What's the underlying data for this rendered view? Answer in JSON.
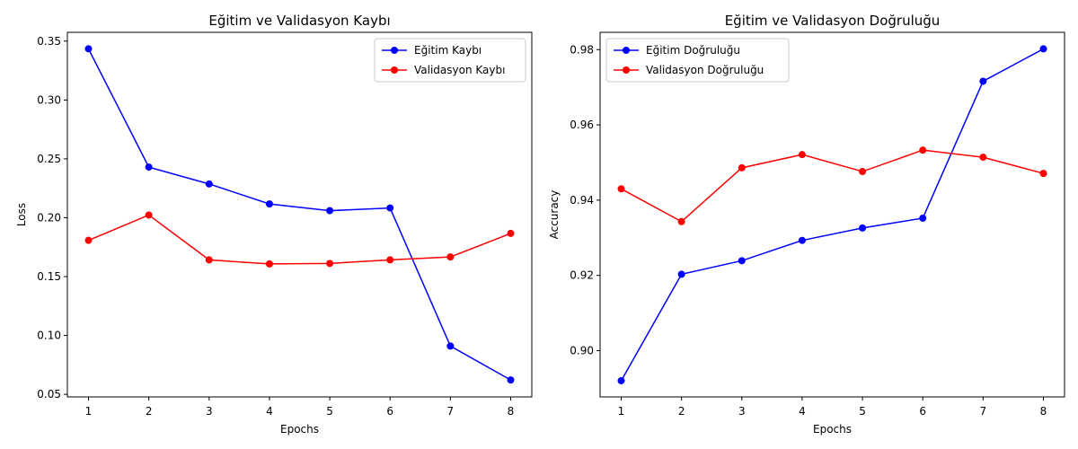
{
  "chart_data": [
    {
      "type": "line",
      "title": "Eğitim ve Validasyon Kaybı",
      "xlabel": "Epochs",
      "ylabel": "Loss",
      "x": [
        1,
        2,
        3,
        4,
        5,
        6,
        7,
        8
      ],
      "xticks": [
        1,
        2,
        3,
        4,
        5,
        6,
        7,
        8
      ],
      "yticks": [
        0.05,
        0.1,
        0.15,
        0.2,
        0.25,
        0.3,
        0.35
      ],
      "ytick_labels": [
        "0.05",
        "0.10",
        "0.15",
        "0.20",
        "0.25",
        "0.30",
        "0.35"
      ],
      "xlim": [
        0.65,
        8.35
      ],
      "ylim": [
        0.0478,
        0.3575
      ],
      "legend_position": "upper-right",
      "grid": false,
      "series": [
        {
          "name": "Eğitim Kaybı",
          "color": "#0000ff",
          "marker": "circle",
          "values": [
            0.3435,
            0.243,
            0.2287,
            0.2117,
            0.206,
            0.2083,
            0.091,
            0.0622
          ]
        },
        {
          "name": "Validasyon Kaybı",
          "color": "#ff0000",
          "marker": "circle",
          "values": [
            0.1808,
            0.2023,
            0.1642,
            0.1608,
            0.1612,
            0.1642,
            0.1667,
            0.1867
          ]
        }
      ]
    },
    {
      "type": "line",
      "title": "Eğitim ve Validasyon Doğruluğu",
      "xlabel": "Epochs",
      "ylabel": "Accuracy",
      "x": [
        1,
        2,
        3,
        4,
        5,
        6,
        7,
        8
      ],
      "xticks": [
        1,
        2,
        3,
        4,
        5,
        6,
        7,
        8
      ],
      "yticks": [
        0.9,
        0.92,
        0.94,
        0.96,
        0.98
      ],
      "ytick_labels": [
        "0.90",
        "0.92",
        "0.94",
        "0.96",
        "0.98"
      ],
      "xlim": [
        0.65,
        8.35
      ],
      "ylim": [
        0.8877,
        0.9846
      ],
      "legend_position": "upper-left",
      "grid": false,
      "series": [
        {
          "name": "Eğitim Doğruluğu",
          "color": "#0000ff",
          "marker": "circle",
          "values": [
            0.892,
            0.9203,
            0.9239,
            0.9293,
            0.9326,
            0.9352,
            0.9716,
            0.9802
          ]
        },
        {
          "name": "Validasyon Doğruluğu",
          "color": "#ff0000",
          "marker": "circle",
          "values": [
            0.943,
            0.9343,
            0.9486,
            0.9521,
            0.9476,
            0.9533,
            0.9514,
            0.9471
          ]
        }
      ]
    }
  ]
}
